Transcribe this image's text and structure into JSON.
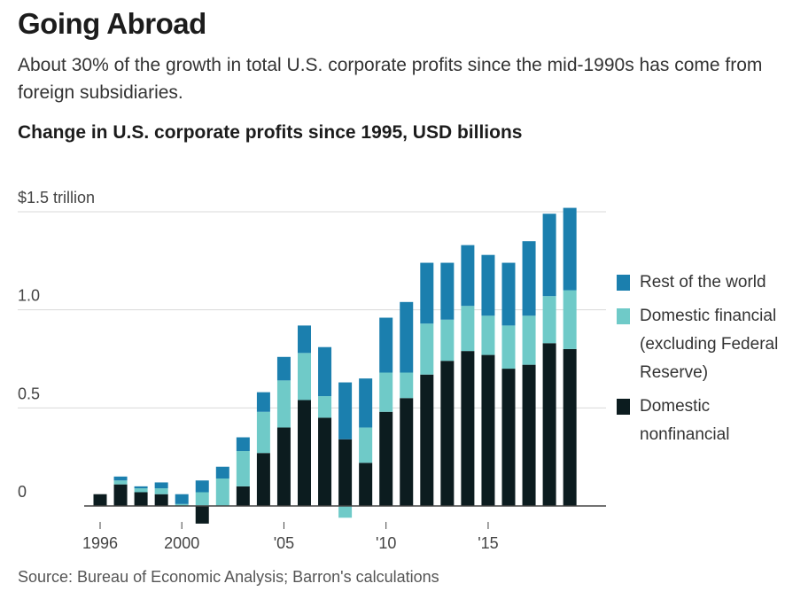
{
  "header": {
    "title": "Going Abroad",
    "subtitle": "About 30% of the growth in total U.S. corporate profits since the mid-1990s has come from foreign subsidiaries.",
    "chart_title": "Change in U.S. corporate profits since 1995, USD billions"
  },
  "source": "Source: Bureau of Economic Analysis; Barron's calculations",
  "colors": {
    "rest_of_world": "#1b7fae",
    "domestic_financial": "#6fcac8",
    "domestic_nonfinancial": "#0c1c1f",
    "grid": "#d9d9d9",
    "axis": "#444444"
  },
  "chart_data": {
    "type": "bar",
    "stacked": true,
    "title": "Change in U.S. corporate profits since 1995, USD billions",
    "ylim": [
      -0.05,
      1.5
    ],
    "y_ticks": [
      {
        "value": 0,
        "label": "0"
      },
      {
        "value": 0.5,
        "label": "0.5"
      },
      {
        "value": 1.0,
        "label": "1.0"
      },
      {
        "value": 1.5,
        "label": "$1.5 trillion"
      }
    ],
    "x_tick_labels": [
      {
        "year": 1996,
        "label": "1996"
      },
      {
        "year": 2000,
        "label": "2000"
      },
      {
        "year": 2005,
        "label": "'05"
      },
      {
        "year": 2010,
        "label": "'10"
      },
      {
        "year": 2015,
        "label": "'15"
      }
    ],
    "years": [
      1996,
      1997,
      1998,
      1999,
      2000,
      2001,
      2002,
      2003,
      2004,
      2005,
      2006,
      2007,
      2008,
      2009,
      2010,
      2011,
      2012,
      2013,
      2014,
      2015,
      2016,
      2017,
      2018,
      2019
    ],
    "series": [
      {
        "name": "Domestic nonfinancial",
        "color_key": "domestic_nonfinancial",
        "values": [
          0.06,
          0.11,
          0.07,
          0.06,
          0.0,
          -0.09,
          0.0,
          0.1,
          0.27,
          0.4,
          0.54,
          0.45,
          0.34,
          0.22,
          0.48,
          0.55,
          0.67,
          0.74,
          0.79,
          0.77,
          0.7,
          0.72,
          0.83,
          0.8
        ]
      },
      {
        "name": "Domestic financial (excluding Federal Reserve)",
        "color_key": "domestic_financial",
        "values": [
          0.0,
          0.02,
          0.02,
          0.03,
          0.01,
          0.07,
          0.14,
          0.18,
          0.21,
          0.24,
          0.24,
          0.11,
          -0.06,
          0.18,
          0.2,
          0.13,
          0.26,
          0.21,
          0.23,
          0.2,
          0.22,
          0.25,
          0.24,
          0.3
        ]
      },
      {
        "name": "Rest of the world",
        "color_key": "rest_of_world",
        "values": [
          0.0,
          0.02,
          0.01,
          0.03,
          0.05,
          0.06,
          0.06,
          0.07,
          0.1,
          0.12,
          0.14,
          0.25,
          0.29,
          0.25,
          0.28,
          0.36,
          0.31,
          0.29,
          0.31,
          0.31,
          0.32,
          0.38,
          0.42,
          0.42
        ]
      }
    ],
    "legend": [
      {
        "label": "Rest of the world",
        "color_key": "rest_of_world"
      },
      {
        "label": "Domestic financial (excluding Federal Reserve)",
        "color_key": "domestic_financial"
      },
      {
        "label": "Domestic nonfinancial",
        "color_key": "domestic_nonfinancial"
      }
    ],
    "legend_position": "right"
  }
}
